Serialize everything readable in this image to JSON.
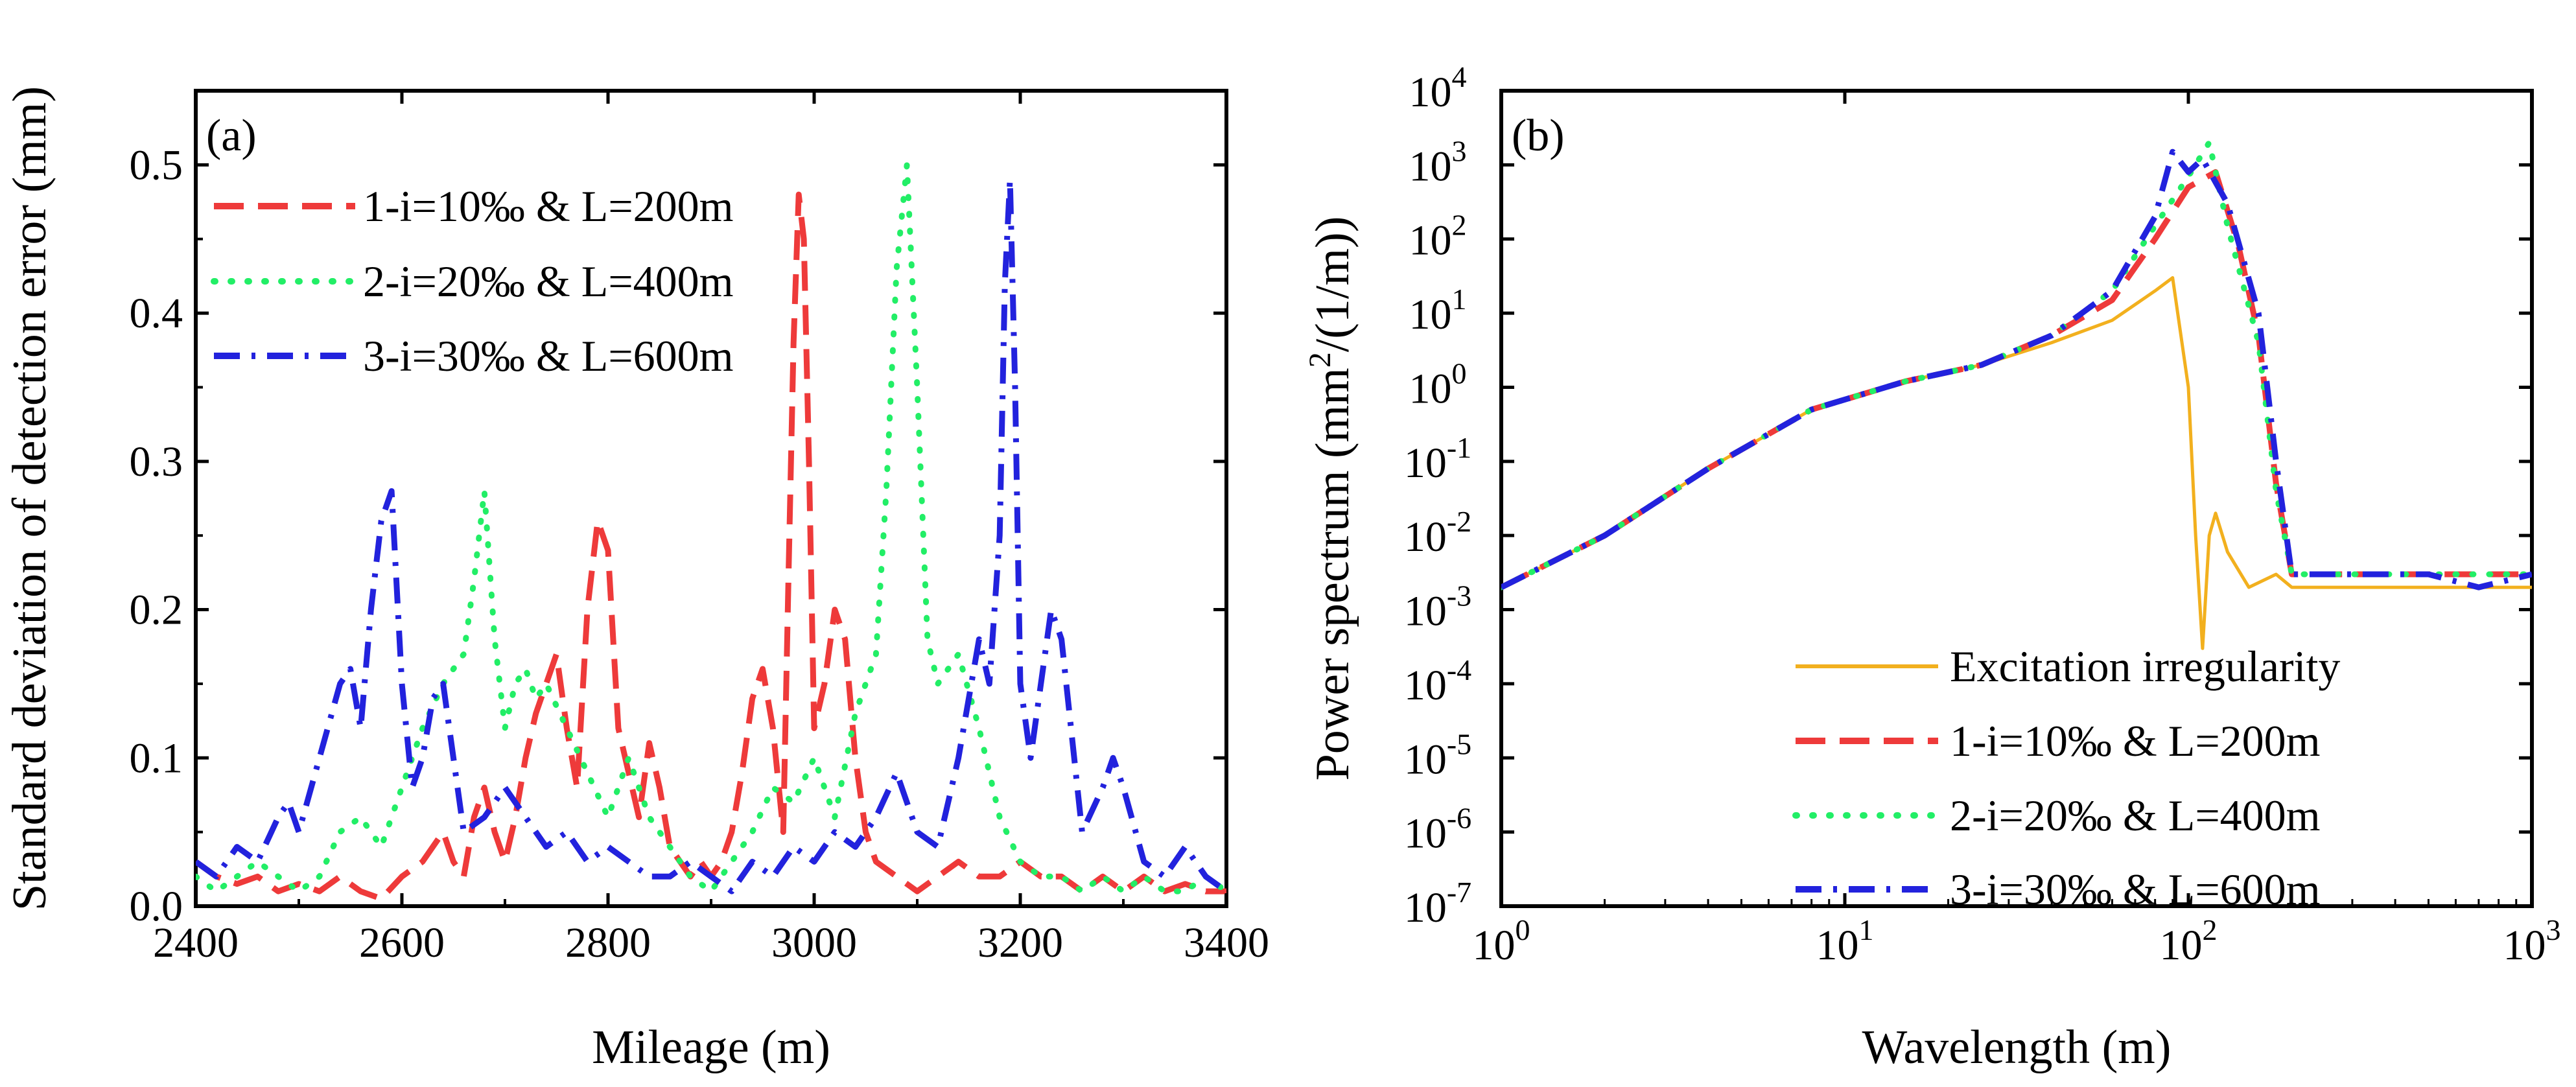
{
  "chart_data": [
    {
      "id": "a",
      "type": "line",
      "panel_label": "(a)",
      "title": "",
      "xlabel": "Mileage (m)",
      "ylabel": "Standard deviation of detection error (mm)",
      "xlim": [
        2400,
        3400
      ],
      "ylim": [
        0,
        0.55
      ],
      "xticks": [
        2400,
        2600,
        2800,
        3000,
        3200,
        3400
      ],
      "yticks": [
        0.0,
        0.1,
        0.2,
        0.3,
        0.4,
        0.5
      ],
      "xtick_labels": [
        "2400",
        "2600",
        "2800",
        "3000",
        "3200",
        "3400"
      ],
      "ytick_labels": [
        "0.0",
        "0.1",
        "0.2",
        "0.3",
        "0.4",
        "0.5"
      ],
      "legend_position": "top-left",
      "series": [
        {
          "name": "1-i=10‰ & L=200m",
          "color": "#ee3a3a",
          "dash": "dash",
          "x": [
            2400,
            2420,
            2440,
            2460,
            2480,
            2500,
            2520,
            2540,
            2560,
            2580,
            2600,
            2620,
            2640,
            2650,
            2660,
            2670,
            2680,
            2690,
            2700,
            2710,
            2720,
            2730,
            2740,
            2750,
            2760,
            2770,
            2780,
            2790,
            2800,
            2810,
            2820,
            2830,
            2840,
            2850,
            2860,
            2870,
            2880,
            2890,
            2900,
            2910,
            2920,
            2930,
            2940,
            2950,
            2960,
            2970,
            2975,
            2980,
            2985,
            2990,
            2995,
            3000,
            3010,
            3020,
            3030,
            3040,
            3050,
            3060,
            3080,
            3100,
            3120,
            3140,
            3160,
            3180,
            3200,
            3220,
            3240,
            3260,
            3280,
            3300,
            3320,
            3340,
            3360,
            3380,
            3400
          ],
          "values": [
            0.03,
            0.02,
            0.015,
            0.02,
            0.01,
            0.015,
            0.01,
            0.02,
            0.01,
            0.005,
            0.02,
            0.03,
            0.05,
            0.03,
            0.02,
            0.06,
            0.08,
            0.05,
            0.03,
            0.06,
            0.1,
            0.13,
            0.15,
            0.17,
            0.12,
            0.08,
            0.2,
            0.26,
            0.24,
            0.12,
            0.09,
            0.06,
            0.11,
            0.08,
            0.04,
            0.03,
            0.02,
            0.03,
            0.02,
            0.03,
            0.05,
            0.09,
            0.14,
            0.16,
            0.12,
            0.05,
            0.22,
            0.38,
            0.48,
            0.45,
            0.3,
            0.12,
            0.15,
            0.2,
            0.18,
            0.1,
            0.05,
            0.03,
            0.02,
            0.01,
            0.02,
            0.03,
            0.02,
            0.02,
            0.03,
            0.02,
            0.02,
            0.01,
            0.02,
            0.01,
            0.02,
            0.01,
            0.015,
            0.01,
            0.01
          ]
        },
        {
          "name": "2-i=20‰ & L=400m",
          "color": "#22ee66",
          "dash": "dot",
          "x": [
            2400,
            2420,
            2440,
            2460,
            2480,
            2500,
            2520,
            2540,
            2560,
            2580,
            2600,
            2620,
            2640,
            2660,
            2670,
            2680,
            2690,
            2700,
            2710,
            2720,
            2730,
            2740,
            2760,
            2780,
            2800,
            2820,
            2840,
            2860,
            2880,
            2900,
            2920,
            2940,
            2960,
            2980,
            3000,
            3020,
            3040,
            3060,
            3070,
            3080,
            3090,
            3100,
            3110,
            3120,
            3140,
            3160,
            3180,
            3200,
            3220,
            3240,
            3260,
            3280,
            3300,
            3320,
            3340,
            3360,
            3380,
            3400
          ],
          "values": [
            0.02,
            0.01,
            0.02,
            0.03,
            0.02,
            0.01,
            0.02,
            0.05,
            0.06,
            0.04,
            0.08,
            0.12,
            0.15,
            0.17,
            0.22,
            0.28,
            0.18,
            0.12,
            0.15,
            0.16,
            0.14,
            0.15,
            0.12,
            0.09,
            0.06,
            0.1,
            0.06,
            0.04,
            0.02,
            0.01,
            0.03,
            0.05,
            0.08,
            0.07,
            0.1,
            0.06,
            0.13,
            0.17,
            0.28,
            0.43,
            0.5,
            0.35,
            0.18,
            0.15,
            0.17,
            0.12,
            0.06,
            0.03,
            0.02,
            0.02,
            0.01,
            0.02,
            0.01,
            0.02,
            0.01,
            0.01,
            0.02,
            0.01
          ]
        },
        {
          "name": "3-i=30‰ & L=600m",
          "color": "#2222dd",
          "dash": "dashdot",
          "x": [
            2400,
            2420,
            2440,
            2460,
            2480,
            2490,
            2500,
            2520,
            2540,
            2550,
            2560,
            2570,
            2580,
            2590,
            2600,
            2610,
            2620,
            2630,
            2640,
            2650,
            2660,
            2680,
            2700,
            2720,
            2740,
            2760,
            2780,
            2800,
            2820,
            2840,
            2860,
            2880,
            2900,
            2920,
            2940,
            2960,
            2980,
            3000,
            3020,
            3040,
            3060,
            3080,
            3100,
            3120,
            3140,
            3160,
            3170,
            3180,
            3185,
            3190,
            3195,
            3200,
            3210,
            3220,
            3230,
            3240,
            3260,
            3280,
            3290,
            3300,
            3320,
            3340,
            3360,
            3380,
            3400
          ],
          "values": [
            0.03,
            0.02,
            0.04,
            0.03,
            0.06,
            0.07,
            0.05,
            0.1,
            0.15,
            0.16,
            0.12,
            0.2,
            0.26,
            0.28,
            0.15,
            0.08,
            0.1,
            0.14,
            0.15,
            0.1,
            0.05,
            0.06,
            0.08,
            0.06,
            0.04,
            0.05,
            0.03,
            0.04,
            0.03,
            0.02,
            0.02,
            0.03,
            0.02,
            0.01,
            0.03,
            0.02,
            0.04,
            0.03,
            0.05,
            0.04,
            0.06,
            0.09,
            0.05,
            0.04,
            0.1,
            0.18,
            0.15,
            0.25,
            0.42,
            0.49,
            0.35,
            0.15,
            0.1,
            0.15,
            0.2,
            0.18,
            0.05,
            0.08,
            0.1,
            0.08,
            0.03,
            0.02,
            0.04,
            0.02,
            0.01
          ]
        }
      ]
    },
    {
      "id": "b",
      "type": "line",
      "panel_label": "(b)",
      "title": "",
      "xlabel": "Wavelength (m)",
      "ylabel_parts": [
        "Power spectrum (mm",
        "2",
        "/(1/m))"
      ],
      "xscale": "log",
      "yscale": "log",
      "xlim": [
        1,
        1000
      ],
      "ylim": [
        1e-07,
        10000
      ],
      "xtick_bases": [
        "10",
        "10",
        "10",
        "10"
      ],
      "xtick_exps": [
        "0",
        "1",
        "2",
        "3"
      ],
      "ytick_bases": [
        "10",
        "10",
        "10",
        "10",
        "10",
        "10",
        "10",
        "10",
        "10",
        "10",
        "10",
        "10"
      ],
      "ytick_exps": [
        "-7",
        "-6",
        "-5",
        "-4",
        "-3",
        "-2",
        "-1",
        "0",
        "1",
        "2",
        "3",
        "4"
      ],
      "legend_position": "bottom-right",
      "series": [
        {
          "name": "Excitation irregularity",
          "color": "#f2b01e",
          "dash": "solid",
          "x": [
            1,
            2,
            4,
            8,
            15,
            25,
            40,
            60,
            80,
            90,
            100,
            105,
            110,
            115,
            120,
            130,
            150,
            180,
            200,
            300,
            500,
            1000
          ],
          "values": [
            0.002,
            0.01,
            0.08,
            0.5,
            1.2,
            2,
            4,
            8,
            20,
            30,
            1,
            0.01,
            0.0003,
            0.01,
            0.02,
            0.006,
            0.002,
            0.003,
            0.002,
            0.002,
            0.002,
            0.002
          ]
        },
        {
          "name": "1-i=10‰ & L=200m",
          "color": "#ee3a3a",
          "dash": "dash",
          "x": [
            1,
            2,
            4,
            8,
            15,
            25,
            40,
            60,
            80,
            100,
            120,
            140,
            160,
            180,
            200,
            300,
            500,
            700,
            1000
          ],
          "values": [
            0.002,
            0.01,
            0.08,
            0.5,
            1.2,
            2,
            5,
            15,
            100,
            500,
            800,
            80,
            5,
            0.05,
            0.003,
            0.003,
            0.003,
            0.003,
            0.003
          ]
        },
        {
          "name": "2-i=20‰ & L=400m",
          "color": "#22ee66",
          "dash": "dot",
          "x": [
            1,
            2,
            4,
            8,
            15,
            25,
            40,
            60,
            80,
            100,
            115,
            130,
            160,
            180,
            200,
            300,
            500,
            700,
            1000
          ],
          "values": [
            0.002,
            0.01,
            0.08,
            0.5,
            1.2,
            2,
            5,
            20,
            150,
            700,
            2000,
            150,
            4,
            0.04,
            0.003,
            0.003,
            0.003,
            0.003,
            0.003
          ]
        },
        {
          "name": "3-i=30‰ & L=600m",
          "color": "#2222dd",
          "dash": "dashdot",
          "x": [
            1,
            2,
            4,
            8,
            15,
            25,
            40,
            60,
            80,
            90,
            100,
            110,
            130,
            160,
            180,
            200,
            300,
            500,
            700,
            1000
          ],
          "values": [
            0.002,
            0.01,
            0.08,
            0.5,
            1.2,
            2,
            5,
            20,
            200,
            1500,
            800,
            1200,
            300,
            10,
            0.1,
            0.003,
            0.003,
            0.003,
            0.002,
            0.003
          ]
        }
      ]
    }
  ]
}
